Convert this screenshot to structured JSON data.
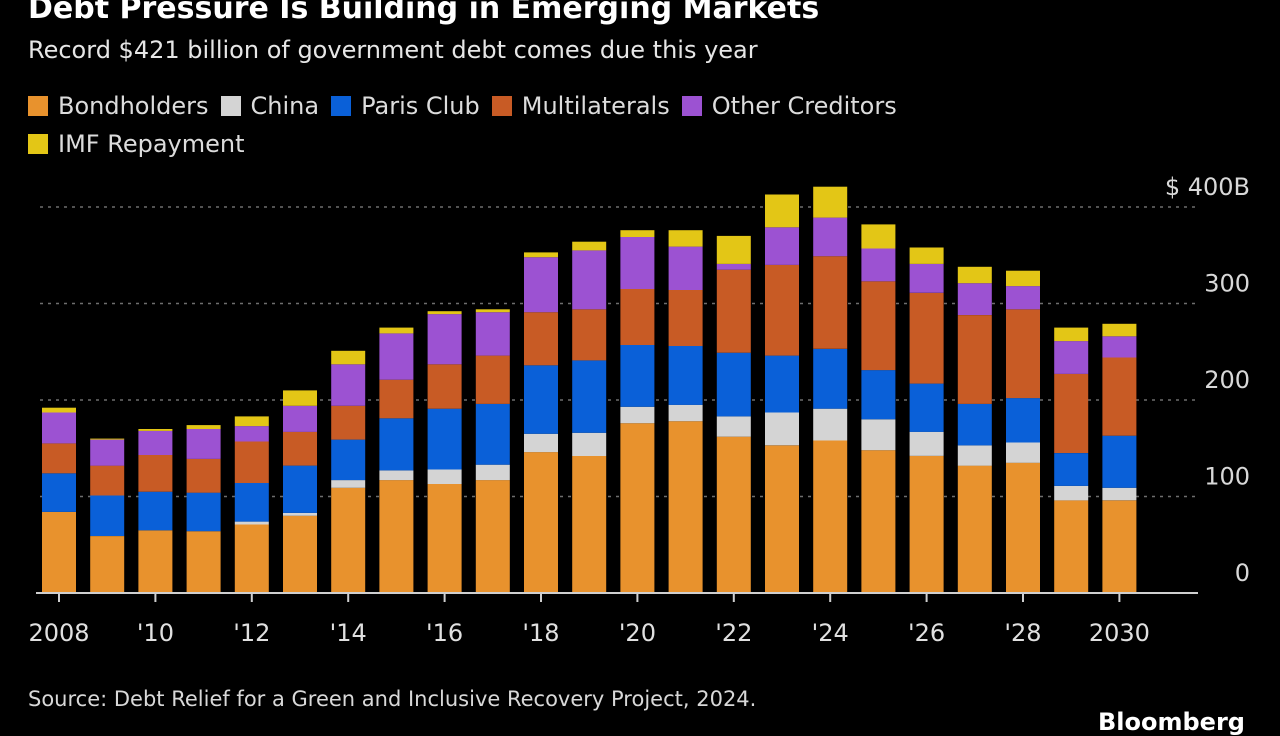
{
  "title": "Debt Pressure Is Building in Emerging Markets",
  "subtitle": "Record $421 billion of government debt comes due this year",
  "source": "Source: Debt Relief for a Green and Inclusive Recovery Project, 2024.",
  "logo": "Bloomberg",
  "colors": {
    "background": "#000000",
    "grid": "#6e6e6e",
    "text": "#ffffff"
  },
  "chart_data": {
    "type": "bar",
    "stacked": true,
    "x": [
      2008,
      2009,
      2010,
      2011,
      2012,
      2013,
      2014,
      2015,
      2016,
      2017,
      2018,
      2019,
      2020,
      2021,
      2022,
      2023,
      2024,
      2025,
      2026,
      2027,
      2028,
      2029,
      2030
    ],
    "tick_labels": [
      {
        "year": 2008,
        "label": "2008"
      },
      {
        "year": 2010,
        "label": "'10"
      },
      {
        "year": 2012,
        "label": "'12"
      },
      {
        "year": 2014,
        "label": "'14"
      },
      {
        "year": 2016,
        "label": "'16"
      },
      {
        "year": 2018,
        "label": "'18"
      },
      {
        "year": 2020,
        "label": "'20"
      },
      {
        "year": 2022,
        "label": "'22"
      },
      {
        "year": 2024,
        "label": "'24"
      },
      {
        "year": 2026,
        "label": "'26"
      },
      {
        "year": 2028,
        "label": "'28"
      },
      {
        "year": 2030,
        "label": "2030"
      }
    ],
    "ylim": [
      0,
      400
    ],
    "y_ticks": [
      {
        "value": 400,
        "label": "$ 400B"
      },
      {
        "value": 300,
        "label": "300"
      },
      {
        "value": 200,
        "label": "200"
      },
      {
        "value": 100,
        "label": "100"
      },
      {
        "value": 0,
        "label": "0"
      }
    ],
    "grid": true,
    "legend_position": "top-left",
    "series": [
      {
        "name": "Bondholders",
        "color": "#e8922d",
        "values": [
          84,
          59,
          65,
          64,
          71,
          80,
          109,
          117,
          113,
          117,
          146,
          142,
          176,
          178,
          162,
          153,
          158,
          148,
          142,
          132,
          135,
          96,
          96
        ]
      },
      {
        "name": "China",
        "color": "#d4d4d4",
        "values": [
          0,
          0,
          0,
          0,
          3,
          3,
          8,
          10,
          15,
          16,
          19,
          24,
          17,
          17,
          21,
          34,
          33,
          32,
          25,
          21,
          21,
          15,
          13
        ]
      },
      {
        "name": "Paris Club",
        "color": "#0a60d8",
        "values": [
          40,
          42,
          40,
          40,
          40,
          49,
          42,
          54,
          63,
          63,
          71,
          75,
          64,
          61,
          66,
          59,
          62,
          51,
          50,
          43,
          46,
          34,
          54
        ]
      },
      {
        "name": "Multilaterals",
        "color": "#c85b25",
        "values": [
          31,
          31,
          38,
          35,
          43,
          35,
          35,
          40,
          46,
          50,
          55,
          53,
          58,
          58,
          86,
          94,
          96,
          92,
          94,
          92,
          92,
          82,
          81
        ]
      },
      {
        "name": "Other Creditors",
        "color": "#9c52d2",
        "values": [
          32,
          27,
          25,
          31,
          16,
          27,
          43,
          48,
          52,
          45,
          57,
          61,
          54,
          45,
          6,
          39,
          40,
          34,
          30,
          33,
          24,
          34,
          22
        ]
      },
      {
        "name": "IMF Repayment",
        "color": "#e3c616",
        "values": [
          5,
          1,
          2,
          4,
          10,
          16,
          14,
          6,
          3,
          3,
          5,
          9,
          7,
          17,
          29,
          34,
          32,
          25,
          17,
          17,
          16,
          14,
          13
        ]
      }
    ]
  }
}
